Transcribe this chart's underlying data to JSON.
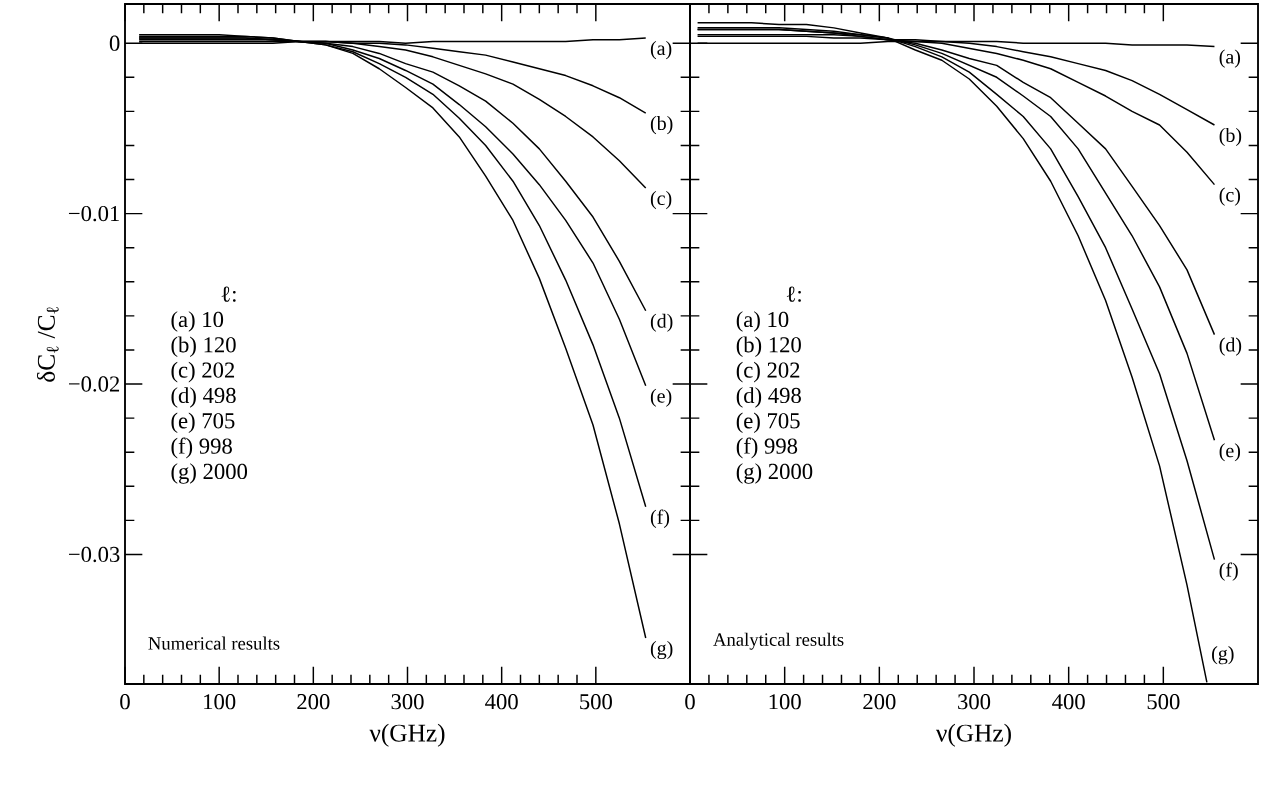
{
  "chart_data": [
    {
      "type": "line",
      "legend": "right",
      "xlabel": "ν(GHz)",
      "ylabel": "δC$_{ℓ}$ /C$_{ℓ}$",
      "xlim": [
        0,
        600
      ],
      "ylim": [
        -0.0376,
        0.0023
      ],
      "xticks": [
        0,
        100,
        200,
        300,
        400,
        500
      ],
      "yticks": [
        {
          "value": 0,
          "label": "0"
        },
        {
          "value": -0.01,
          "label": "−0.01"
        },
        {
          "value": -0.02,
          "label": "−0.02"
        },
        {
          "value": -0.03,
          "label": "−0.03"
        }
      ],
      "x": [
        15,
        43,
        72,
        100,
        128,
        157,
        185,
        213,
        242,
        270,
        298,
        327,
        355,
        383,
        412,
        440,
        468,
        497,
        525,
        553
      ],
      "series": [
        {
          "name": "(a)",
          "color": "#000000",
          "values": [
            0,
            0,
            0,
            0,
            0,
            0,
            0.0001,
            0.0001,
            0.0001,
            0.0001,
            0,
            0.0001,
            0.0001,
            0.0001,
            0.0001,
            0.0001,
            0.0001,
            0.0002,
            0.0002,
            0.0003
          ]
        },
        {
          "name": "(b)",
          "color": "#000000",
          "values": [
            0.0001,
            0.0001,
            0.0001,
            0.0001,
            0.0001,
            0.0001,
            0.0001,
            0.0001,
            0,
            0,
            -0.0001,
            -0.0003,
            -0.0005,
            -0.0007,
            -0.0011,
            -0.0015,
            -0.0019,
            -0.0025,
            -0.0032,
            -0.0041
          ]
        },
        {
          "name": "(c)",
          "color": "#000000",
          "values": [
            0.0002,
            0.0002,
            0.0002,
            0.0002,
            0.0002,
            0.0002,
            0.0001,
            0.0001,
            0,
            -0.0002,
            -0.0004,
            -0.0008,
            -0.0013,
            -0.0018,
            -0.0024,
            -0.0033,
            -0.0043,
            -0.0055,
            -0.0069,
            -0.0085
          ]
        },
        {
          "name": "(d)",
          "color": "#000000",
          "values": [
            0.0003,
            0.0003,
            0.0003,
            0.0003,
            0.0003,
            0.0002,
            0.0001,
            0,
            -0.0002,
            -0.0006,
            -0.0012,
            -0.0017,
            -0.0025,
            -0.0034,
            -0.0047,
            -0.0062,
            -0.0081,
            -0.0102,
            -0.0128,
            -0.0157
          ]
        },
        {
          "name": "(e)",
          "color": "#000000",
          "values": [
            0.0003,
            0.0003,
            0.0003,
            0.0003,
            0.0003,
            0.0002,
            0.0001,
            0,
            -0.0004,
            -0.0009,
            -0.0016,
            -0.0024,
            -0.0036,
            -0.0049,
            -0.0065,
            -0.0083,
            -0.0104,
            -0.0129,
            -0.0162,
            -0.0201
          ]
        },
        {
          "name": "(f)",
          "color": "#000000",
          "values": [
            0.0004,
            0.0004,
            0.0004,
            0.0004,
            0.0004,
            0.0003,
            0.0001,
            -0.0001,
            -0.0005,
            -0.0012,
            -0.002,
            -0.003,
            -0.0044,
            -0.006,
            -0.0081,
            -0.0107,
            -0.0139,
            -0.0177,
            -0.022,
            -0.0272
          ]
        },
        {
          "name": "(g)",
          "color": "#000000",
          "values": [
            0.0005,
            0.0005,
            0.0005,
            0.0005,
            0.0004,
            0.0003,
            0.0001,
            -0.0001,
            -0.0006,
            -0.0015,
            -0.0026,
            -0.0038,
            -0.0055,
            -0.0078,
            -0.0104,
            -0.0138,
            -0.0179,
            -0.0224,
            -0.0282,
            -0.0349
          ]
        }
      ],
      "annotations": [
        "ℓ:",
        "(a)  10",
        "(b)  120",
        "(c)  202",
        "(d)  498",
        "(e)  705",
        "(f)  998",
        "(g)  2000",
        "Numerical results"
      ]
    },
    {
      "type": "line",
      "legend": "right",
      "xlabel": "ν(GHz)",
      "xlim": [
        0,
        600
      ],
      "ylim": [
        -0.0376,
        0.0023
      ],
      "tick_labels": "x",
      "xticks": [
        0,
        100,
        200,
        300,
        400,
        500
      ],
      "yticks": [
        {
          "value": 0,
          "label": null
        },
        {
          "value": -0.01,
          "label": null
        },
        {
          "value": -0.02,
          "label": null
        },
        {
          "value": -0.03,
          "label": null
        }
      ],
      "x": [
        8,
        37,
        65,
        94,
        123,
        152,
        180,
        209,
        238,
        266,
        295,
        324,
        352,
        381,
        410,
        439,
        467,
        496,
        525,
        554
      ],
      "series": [
        {
          "name": "(a)",
          "color": "#000000",
          "values": [
            0,
            0,
            0,
            0,
            0,
            0,
            0,
            0.0001,
            0.0001,
            0.0001,
            0.0001,
            0.0001,
            0,
            0,
            0,
            0,
            -0.0001,
            -0.0001,
            -0.0001,
            -0.0002
          ]
        },
        {
          "name": "(b)",
          "color": "#000000",
          "values": [
            0.0004,
            0.0004,
            0.0004,
            0.0004,
            0.0004,
            0.0003,
            0.0003,
            0.0002,
            0.0002,
            0.0001,
            0,
            -0.0002,
            -0.0005,
            -0.0008,
            -0.0012,
            -0.0016,
            -0.0022,
            -0.003,
            -0.0039,
            -0.0048
          ]
        },
        {
          "name": "(c)",
          "color": "#000000",
          "values": [
            0.0005,
            0.0005,
            0.0005,
            0.0005,
            0.0005,
            0.0005,
            0.0004,
            0.0002,
            0.0001,
            0,
            -0.0003,
            -0.0006,
            -0.001,
            -0.0015,
            -0.0023,
            -0.0031,
            -0.004,
            -0.0048,
            -0.0064,
            -0.0083
          ]
        },
        {
          "name": "(d)",
          "color": "#000000",
          "values": [
            0.0008,
            0.0008,
            0.0008,
            0.0008,
            0.0007,
            0.0006,
            0.0004,
            0.0002,
            0,
            -0.0004,
            -0.0009,
            -0.0013,
            -0.0023,
            -0.0032,
            -0.0047,
            -0.0062,
            -0.0084,
            -0.0107,
            -0.0133,
            -0.0171
          ]
        },
        {
          "name": "(e)",
          "color": "#000000",
          "values": [
            0.0008,
            0.0008,
            0.0008,
            0.0008,
            0.0007,
            0.0006,
            0.0005,
            0.0003,
            -0.0001,
            -0.0006,
            -0.0013,
            -0.002,
            -0.0031,
            -0.0043,
            -0.0062,
            -0.0088,
            -0.0113,
            -0.0143,
            -0.0182,
            -0.0233
          ]
        },
        {
          "name": "(f)",
          "color": "#000000",
          "values": [
            0.0009,
            0.0009,
            0.0009,
            0.0009,
            0.0008,
            0.0007,
            0.0005,
            0.0003,
            -0.0002,
            -0.0008,
            -0.0017,
            -0.003,
            -0.0043,
            -0.0062,
            -0.009,
            -0.012,
            -0.0156,
            -0.0194,
            -0.0245,
            -0.0303
          ]
        },
        {
          "name": "(g)",
          "color": "#000000",
          "x": [
            8,
            37,
            65,
            94,
            123,
            152,
            180,
            209,
            238,
            266,
            295,
            324,
            352,
            381,
            410,
            439,
            467,
            496,
            525,
            546
          ],
          "values": [
            0.0012,
            0.0012,
            0.0012,
            0.0011,
            0.0011,
            0.0009,
            0.0006,
            0.0003,
            -0.0004,
            -0.001,
            -0.0021,
            -0.0037,
            -0.0056,
            -0.0081,
            -0.0113,
            -0.0151,
            -0.0196,
            -0.0248,
            -0.0318,
            -0.0375
          ]
        }
      ],
      "annotations": [
        "ℓ:",
        "(a)  10",
        "(b)  120",
        "(c)  202",
        "(d)  498",
        "(e)  705",
        "(f)  998",
        "(g)  2000",
        "Analytical results"
      ]
    }
  ]
}
